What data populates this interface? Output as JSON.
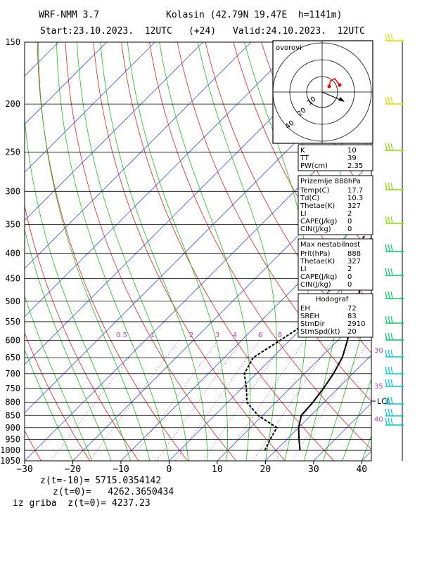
{
  "header": {
    "model": "WRF-NMM 3.7",
    "station": "Kolasin (42.79N 19.47E  h=1141m)",
    "start": "Start:23.10.2023.  12UTC",
    "lead": "(+24)",
    "valid": "Valid:24.10.2023.  12UTC"
  },
  "chart_data": {
    "type": "line",
    "title": "",
    "x_axis": {
      "ticks": [
        -30,
        -20,
        -10,
        0,
        10,
        20,
        30,
        40
      ],
      "range": [
        -30,
        42
      ]
    },
    "y_axis": {
      "ticks": [
        150,
        200,
        250,
        300,
        350,
        400,
        450,
        500,
        550,
        600,
        650,
        700,
        750,
        800,
        850,
        900,
        950,
        1000,
        1050
      ],
      "range": [
        150,
        1050
      ],
      "scale": "log"
    },
    "mixing_ratio_labels": [
      "0.5",
      "1",
      "2",
      "3",
      "4",
      "6",
      "8"
    ],
    "series": [
      {
        "color": "#000000",
        "style": "solid",
        "points": [
          [
            25,
            1000
          ],
          [
            22.5,
            950
          ],
          [
            20,
            900
          ],
          [
            18,
            850
          ],
          [
            17.7,
            800
          ],
          [
            17,
            750
          ],
          [
            16,
            700
          ],
          [
            14.5,
            650
          ],
          [
            12,
            600
          ],
          [
            9,
            550
          ],
          [
            6,
            500
          ],
          [
            2,
            450
          ],
          [
            -2,
            400
          ],
          [
            -6.5,
            350
          ],
          [
            -11.5,
            300
          ],
          [
            -17,
            250
          ],
          [
            -21.5,
            200
          ],
          [
            -18,
            150
          ]
        ]
      },
      {
        "color": "#000000",
        "style": "dashed",
        "points": [
          [
            17.7,
            1000
          ],
          [
            16.5,
            950
          ],
          [
            15.5,
            900
          ],
          [
            9,
            850
          ],
          [
            4,
            800
          ],
          [
            1,
            750
          ],
          [
            -2.5,
            700
          ],
          [
            -4,
            650
          ],
          [
            -2,
            600
          ],
          [
            0,
            550
          ],
          [
            -1,
            500
          ],
          [
            -3.5,
            450
          ],
          [
            -5,
            400
          ],
          [
            -7,
            350
          ],
          [
            -10.5,
            300
          ],
          [
            -16.5,
            250
          ],
          [
            -29,
            200
          ],
          [
            -26,
            150
          ]
        ]
      }
    ],
    "right_labels": {
      "lcl": "LCL",
      "nums": [
        "30",
        "35",
        "40"
      ]
    },
    "hodograph": {
      "title": "ovorovi",
      "labels": [
        "10",
        "20",
        "40"
      ],
      "marker_color": "#ff0000"
    },
    "wind_colors": {
      "top": "#dddd00",
      "upper": "#88dd00",
      "mid": "#00cc66",
      "low": "#00cccc"
    }
  },
  "panels": {
    "indices": [
      [
        "K",
        "10"
      ],
      [
        "TT",
        "39"
      ],
      [
        "PW(cm)",
        "2.35"
      ]
    ],
    "surface_title": "Prizemlje 888hPa",
    "surface": [
      [
        "Temp(C)",
        "17.7"
      ],
      [
        "Td(C)",
        "10.3"
      ],
      [
        "Thetae(K)",
        "327"
      ],
      [
        "LI",
        "2"
      ],
      [
        "CAPE(J/kg)",
        "0"
      ],
      [
        "CIN(J/kg)",
        "0"
      ]
    ],
    "maxinst_title": "Max nestabilnost",
    "maxinst": [
      [
        "Prit(hPa)",
        "888"
      ],
      [
        "Thetae(K)",
        "327"
      ],
      [
        "LI",
        "2"
      ],
      [
        "CAPE(J/kg)",
        "0"
      ],
      [
        "CIN(J/kg)",
        "0"
      ]
    ],
    "hodo_title": "Hodograf",
    "hodo": [
      [
        "EH",
        "72"
      ],
      [
        "SREH",
        "83"
      ],
      [
        "StmDir",
        "2910"
      ],
      [
        "StmSpd(kt)",
        "20"
      ]
    ]
  },
  "footer": {
    "l1": "z(t=-10)= 5715.0354142",
    "l2": "z(t=0)=   4262.3650434",
    "l3": "iz griba  z(t=0)= 4237.23"
  }
}
